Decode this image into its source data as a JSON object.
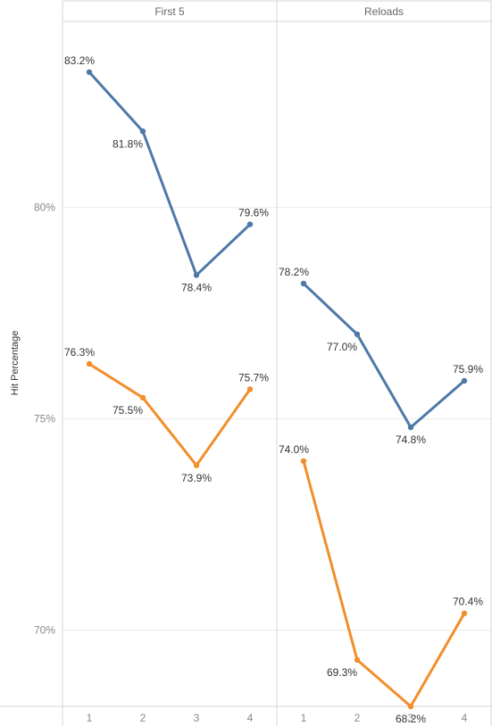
{
  "chart_data": {
    "type": "line",
    "ylabel": "Hit Percentage",
    "ylim": [
      68.2,
      84.4
    ],
    "y_ticks": [
      "80%",
      "75%",
      "70%"
    ],
    "y_tick_values": [
      80,
      75,
      70
    ],
    "grid": true,
    "colors": {
      "blue": "#4e79a7",
      "orange": "#f28e2b"
    },
    "panels": [
      {
        "name": "First 5",
        "x": [
          "1",
          "2",
          "3",
          "4"
        ],
        "series": [
          {
            "color_key": "blue",
            "values": [
              83.2,
              81.8,
              78.4,
              79.6
            ],
            "labels": [
              "83.2%",
              "81.8%",
              "78.4%",
              "79.6%"
            ]
          },
          {
            "color_key": "orange",
            "values": [
              76.3,
              75.5,
              73.9,
              75.7
            ],
            "labels": [
              "76.3%",
              "75.5%",
              "73.9%",
              "75.7%"
            ]
          }
        ]
      },
      {
        "name": "Reloads",
        "x": [
          "1",
          "2",
          "3",
          "4"
        ],
        "series": [
          {
            "color_key": "blue",
            "values": [
              78.2,
              77.0,
              74.8,
              75.9
            ],
            "labels": [
              "78.2%",
              "77.0%",
              "74.8%",
              "75.9%"
            ]
          },
          {
            "color_key": "orange",
            "values": [
              74.0,
              69.3,
              68.2,
              70.4
            ],
            "labels": [
              "74.0%",
              "69.3%",
              "68.2%",
              "70.4%"
            ]
          }
        ]
      }
    ]
  }
}
